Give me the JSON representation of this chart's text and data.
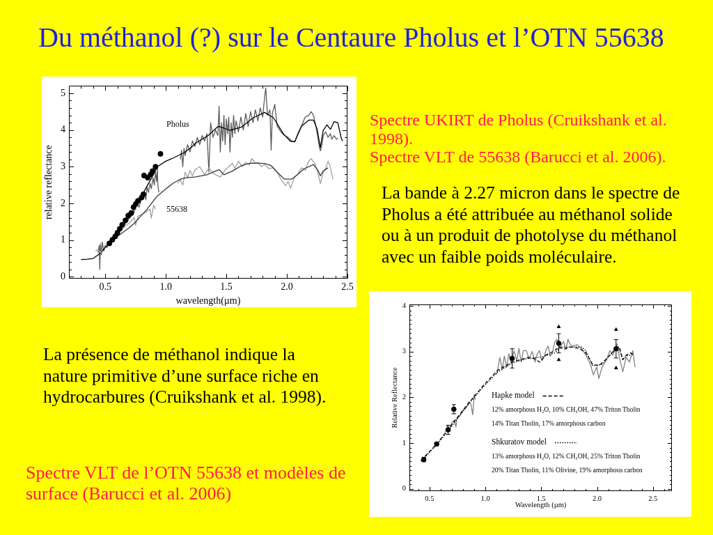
{
  "chart_data": [
    {
      "type": "line",
      "title": "Du méthanol (?) sur le Centaure Pholus et l’OTN 55638",
      "xlabel": "wavelength(µm)",
      "ylabel": "relative reflectance",
      "xlim": [
        0.2,
        2.5
      ],
      "ylim": [
        -0.05,
        5.2
      ],
      "xticks": [
        {
          "value": 0.3,
          "label": null
        },
        {
          "value": 0.4,
          "label": null
        },
        0.5,
        {
          "value": 0.6,
          "label": null
        },
        {
          "value": 0.7,
          "label": null
        },
        {
          "value": 0.8,
          "label": null
        },
        {
          "value": 0.9,
          "label": null
        },
        {
          "value": 1,
          "label": "1.0"
        },
        {
          "value": 1.1,
          "label": null
        },
        {
          "value": 1.2,
          "label": null
        },
        {
          "value": 1.3,
          "label": null
        },
        {
          "value": 1.4,
          "label": null
        },
        1.5,
        {
          "value": 1.6,
          "label": null
        },
        {
          "value": 1.7,
          "label": null
        },
        {
          "value": 1.8,
          "label": null
        },
        {
          "value": 1.9,
          "label": null
        },
        {
          "value": 2,
          "label": "2.0"
        },
        {
          "value": 2.1,
          "label": null
        },
        {
          "value": 2.2,
          "label": null
        },
        {
          "value": 2.3,
          "label": null
        },
        {
          "value": 2.4,
          "label": null
        },
        2.5
      ],
      "yticks": [
        0,
        {
          "value": 0.2,
          "label": null
        },
        {
          "value": 0.4,
          "label": null
        },
        {
          "value": 0.6,
          "label": null
        },
        {
          "value": 0.8,
          "label": null
        },
        1,
        {
          "value": 1.2,
          "label": null
        },
        {
          "value": 1.4,
          "label": null
        },
        {
          "value": 1.6,
          "label": null
        },
        {
          "value": 1.8,
          "label": null
        },
        2,
        {
          "value": 2.2,
          "label": null
        },
        {
          "value": 2.4,
          "label": null
        },
        {
          "value": 2.6,
          "label": null
        },
        {
          "value": 2.8,
          "label": null
        },
        3,
        {
          "value": 3.2,
          "label": null
        },
        {
          "value": 3.4,
          "label": null
        },
        {
          "value": 3.6,
          "label": null
        },
        {
          "value": 3.8,
          "label": null
        },
        4,
        {
          "value": 4.2,
          "label": null
        },
        {
          "value": 4.4,
          "label": null
        },
        {
          "value": 4.6,
          "label": null
        },
        {
          "value": 4.8,
          "label": null
        },
        5
      ],
      "series": [
        {
          "name": "Pholus",
          "color": "#5c5c5c",
          "x": [
            0.44,
            0.45,
            0.455,
            0.46,
            0.468,
            0.475,
            0.487,
            0.5,
            0.515,
            0.53,
            0.56,
            0.6,
            0.63,
            0.66,
            0.7,
            0.73,
            0.76,
            0.78,
            0.8,
            0.82,
            0.835,
            0.845,
            0.857,
            0.87,
            0.88,
            0.895,
            0.905,
            0.915,
            0.924,
            0.93,
            0.934,
            0.943,
            0.95,
            1.12,
            1.13,
            1.14,
            1.15,
            1.16,
            1.18,
            1.2,
            1.22,
            1.24,
            1.26,
            1.28,
            1.3,
            1.32,
            1.34,
            1.356,
            1.37,
            1.39,
            1.41,
            1.43,
            1.44,
            1.45,
            1.46,
            1.47,
            1.48,
            1.49,
            1.5,
            1.51,
            1.52,
            1.53,
            1.54,
            1.55,
            1.56,
            1.57,
            1.58,
            1.6,
            1.62,
            1.64,
            1.66,
            1.68,
            1.7,
            1.72,
            1.74,
            1.76,
            1.78,
            1.8,
            1.81,
            1.825,
            1.84,
            1.86,
            1.87,
            1.88,
            1.9,
            1.92,
            1.95,
            1.98,
            2.01,
            2.04,
            2.065,
            2.09,
            2.12,
            2.15,
            2.18,
            2.2,
            2.22,
            2.24,
            2.25,
            2.265,
            2.276,
            2.29,
            2.3,
            2.32,
            2.34,
            2.36,
            2.37,
            2.39,
            2.41,
            2.42
          ],
          "values": [
            0.65,
            0.85,
            0.2,
            0.9,
            0.6,
            0.95,
            0.7,
            0.85,
            0.8,
            0.95,
            1.0,
            1.15,
            1.3,
            1.42,
            1.6,
            1.7,
            1.95,
            1.9,
            2.15,
            2.3,
            2.1,
            2.45,
            2.3,
            2.55,
            2.4,
            2.7,
            2.5,
            2.85,
            2.6,
            2.95,
            2.5,
            2.3,
            null,
            3.2,
            3.45,
            3.0,
            3.5,
            3.3,
            3.6,
            3.4,
            3.7,
            3.55,
            3.8,
            3.6,
            3.85,
            3.7,
            3.9,
            2.85,
            4.2,
            3.8,
            4.0,
            3.85,
            4.65,
            3.4,
            4.2,
            3.7,
            4.4,
            3.6,
            4.3,
            3.9,
            4.35,
            3.4,
            4.2,
            3.8,
            4.4,
            3.9,
            4.25,
            3.95,
            4.35,
            4.0,
            4.45,
            4.1,
            4.5,
            4.2,
            4.55,
            4.25,
            4.6,
            4.35,
            4.7,
            5.15,
            4.4,
            4.55,
            3.45,
            4.45,
            4.7,
            4.1,
            3.95,
            3.85,
            3.8,
            3.7,
            3.68,
            3.9,
            4.1,
            4.35,
            4.4,
            4.5,
            4.4,
            4.1,
            3.9,
            3.6,
            3.43,
            3.6,
            3.85,
            3.95,
            3.8,
            3.9,
            3.75,
            3.85,
            3.75,
            3.78
          ]
        },
        {
          "color": "#000000",
          "x": [
            0.3,
            0.35,
            0.4,
            0.45,
            0.5,
            0.55,
            0.6,
            0.65,
            0.7,
            0.75,
            0.8,
            0.85,
            0.9,
            0.93,
            1.0,
            1.05,
            1.1,
            1.15,
            1.2,
            1.25,
            1.3,
            1.35,
            1.433,
            1.48,
            1.53,
            1.625,
            1.72,
            1.816,
            1.89,
            1.97,
            2.03,
            2.065,
            2.12,
            2.18,
            2.22,
            2.25,
            2.276,
            2.3,
            2.33,
            2.36,
            2.39,
            2.42,
            2.45,
            2.46
          ],
          "values": [
            0.47,
            0.48,
            0.5,
            0.62,
            0.8,
            0.98,
            1.18,
            1.4,
            1.65,
            1.92,
            2.2,
            2.5,
            2.8,
            3.0,
            3.15,
            3.22,
            3.3,
            3.38,
            3.5,
            3.65,
            3.75,
            3.85,
            4.1,
            4.05,
            3.99,
            4.08,
            4.33,
            4.48,
            4.33,
            3.9,
            3.69,
            3.68,
            4.1,
            4.27,
            4.27,
            4.02,
            3.52,
            3.99,
            4.14,
            4.02,
            4.23,
            4.2,
            3.77,
            3.7
          ]
        },
        {
          "name": "55638",
          "color": "#a0a0a0",
          "x": [
            0.42,
            0.44,
            0.46,
            0.477,
            0.5,
            0.53,
            0.56,
            0.6,
            0.64,
            0.68,
            0.71,
            0.74,
            0.75,
            0.77,
            0.8,
            0.84,
            0.87,
            0.88,
            0.9,
            0.915,
            0.95,
            1.1,
            1.12,
            1.14,
            1.16,
            1.18,
            1.2,
            1.22,
            1.24,
            1.28,
            1.32,
            1.356,
            1.395,
            1.45,
            1.49,
            1.52,
            1.55,
            1.57,
            1.6,
            1.63,
            1.66,
            1.69,
            1.71,
            1.74,
            1.76,
            1.79,
            1.816,
            1.85,
            1.89,
            1.92,
            1.95,
            1.99,
            2.01,
            2.03,
            2.065,
            2.09,
            2.12,
            2.15,
            2.18,
            2.2,
            2.23,
            2.25,
            2.276,
            2.3,
            2.32,
            2.34,
            2.36,
            2.38
          ],
          "values": [
            0.69,
            0.75,
            0.65,
            0.78,
            0.85,
            0.95,
            1.05,
            1.15,
            1.3,
            1.42,
            1.5,
            1.62,
            1.4,
            1.65,
            1.7,
            1.77,
            1.85,
            1.6,
            1.95,
            1.85,
            null,
            2.55,
            2.65,
            2.5,
            2.85,
            2.7,
            2.9,
            2.75,
            2.91,
            3.0,
            2.78,
            2.97,
            2.81,
            2.72,
            2.91,
            3.0,
            3.09,
            2.95,
            3.15,
            3.0,
            3.12,
            3.05,
            3.22,
            3.1,
            3.12,
            3.0,
            3.06,
            2.95,
            2.97,
            2.85,
            2.66,
            2.48,
            2.6,
            2.41,
            2.72,
            2.8,
            2.97,
            2.9,
            3.15,
            3.22,
            3.09,
            2.9,
            2.54,
            2.85,
            2.95,
            3.15,
            2.97,
            2.66
          ]
        },
        {
          "color": "#383838",
          "x": [
            0.55,
            0.6,
            0.65,
            0.7,
            0.74,
            0.8,
            0.84,
            0.9,
            0.93,
            1.01,
            1.06,
            1.12,
            1.17,
            1.24,
            1.34,
            1.41,
            1.44,
            1.48,
            1.55,
            1.625,
            1.7,
            1.816,
            1.87,
            1.92,
            1.98,
            2.04,
            2.085,
            2.14,
            2.22,
            2.26,
            2.276,
            2.3,
            2.34
          ],
          "values": [
            0.97,
            1.1,
            1.22,
            1.34,
            1.46,
            1.68,
            1.82,
            2.08,
            2.2,
            2.42,
            2.55,
            2.66,
            2.7,
            2.72,
            2.78,
            2.88,
            2.92,
            2.78,
            2.88,
            3.03,
            3.1,
            3.09,
            3.03,
            2.85,
            2.66,
            2.66,
            2.78,
            2.94,
            3.06,
            2.88,
            2.75,
            2.88,
            2.97
          ]
        },
        {
          "type": "scatter",
          "marker": "circle",
          "color": "#000000",
          "x": [
            0.534,
            0.559,
            0.582,
            0.6,
            0.62,
            0.64,
            0.667,
            0.69,
            0.715,
            0.734,
            0.753,
            0.77,
            0.8,
            0.815,
            0.82,
            0.85,
            0.875,
            0.89,
            0.915,
            0.956
          ],
          "values": [
            0.91,
            1.01,
            1.1,
            1.2,
            1.31,
            1.42,
            1.54,
            1.67,
            1.74,
            1.9,
            1.99,
            2.07,
            2.16,
            2.25,
            2.76,
            2.7,
            2.79,
            2.88,
            3.0,
            3.35
          ]
        }
      ],
      "annotations": [
        "Spectre UKIRT de Pholus (Cruikshank et al. 1998).",
        "Spectre VLT de 55638 (Barucci et al. 2006).",
        "La bande à 2.27 micron dans le spectre de Pholus a été attribuée au méthanol solide ou à un produit de photolyse du méthanol avec un faible poids moléculaire.",
        "La présence de méthanol indique la nature primitive d’une surface riche en hydrocarbures (Cruikshank et al. 1998)."
      ]
    },
    {
      "type": "line",
      "xlabel": "Wavelength (µm)",
      "ylabel": "Relative Reflectance",
      "xlim": [
        0.32,
        2.67
      ],
      "ylim": [
        -0.05,
        4.03
      ],
      "legend": "bottom right",
      "xticks": [
        {
          "value": 0.4,
          "label": null
        },
        0.5,
        {
          "value": 0.6,
          "label": null
        },
        {
          "value": 0.7,
          "label": null
        },
        {
          "value": 0.8,
          "label": null
        },
        {
          "value": 0.9,
          "label": null
        },
        {
          "value": 1,
          "label": "1.0"
        },
        {
          "value": 1.1,
          "label": null
        },
        {
          "value": 1.2,
          "label": null
        },
        {
          "value": 1.3,
          "label": null
        },
        {
          "value": 1.4,
          "label": null
        },
        1.5,
        {
          "value": 1.6,
          "label": null
        },
        {
          "value": 1.7,
          "label": null
        },
        {
          "value": 1.8,
          "label": null
        },
        {
          "value": 1.9,
          "label": null
        },
        {
          "value": 2,
          "label": "2.0"
        },
        {
          "value": 2.1,
          "label": null
        },
        {
          "value": 2.2,
          "label": null
        },
        {
          "value": 2.3,
          "label": null
        },
        {
          "value": 2.4,
          "label": null
        },
        2.5,
        {
          "value": 2.6,
          "label": null
        }
      ],
      "yticks": [
        0,
        {
          "value": 0.1,
          "label": null
        },
        {
          "value": 0.2,
          "label": null
        },
        {
          "value": 0.3,
          "label": null
        },
        {
          "value": 0.4,
          "label": null
        },
        {
          "value": 0.5,
          "label": null
        },
        {
          "value": 0.6,
          "label": null
        },
        {
          "value": 0.7,
          "label": null
        },
        {
          "value": 0.8,
          "label": null
        },
        {
          "value": 0.9,
          "label": null
        },
        1,
        {
          "value": 1.1,
          "label": null
        },
        {
          "value": 1.2,
          "label": null
        },
        {
          "value": 1.3,
          "label": null
        },
        {
          "value": 1.4,
          "label": null
        },
        {
          "value": 1.5,
          "label": null
        },
        {
          "value": 1.6,
          "label": null
        },
        {
          "value": 1.7,
          "label": null
        },
        {
          "value": 1.8,
          "label": null
        },
        {
          "value": 1.9,
          "label": null
        },
        2,
        {
          "value": 2.1,
          "label": null
        },
        {
          "value": 2.2,
          "label": null
        },
        {
          "value": 2.3,
          "label": null
        },
        {
          "value": 2.4,
          "label": null
        },
        {
          "value": 2.5,
          "label": null
        },
        {
          "value": 2.6,
          "label": null
        },
        {
          "value": 2.7,
          "label": null
        },
        {
          "value": 2.8,
          "label": null
        },
        {
          "value": 2.9,
          "label": null
        },
        3,
        {
          "value": 3.1,
          "label": null
        },
        {
          "value": 3.2,
          "label": null
        },
        {
          "value": 3.3,
          "label": null
        },
        {
          "value": 3.4,
          "label": null
        },
        {
          "value": 3.5,
          "label": null
        },
        {
          "value": 3.6,
          "label": null
        },
        {
          "value": 3.7,
          "label": null
        },
        {
          "value": 3.8,
          "label": null
        },
        {
          "value": 3.9,
          "label": null
        },
        4
      ],
      "series": [
        {
          "color": "#808080",
          "x": [
            0.64,
            0.66,
            0.68,
            0.7,
            0.72,
            0.737,
            0.745,
            0.77,
            0.8,
            0.83,
            0.85,
            0.87,
            0.887,
            0.9,
            0.91,
            0.92,
            1.1,
            1.11,
            1.13,
            1.15,
            1.17,
            1.19,
            1.21,
            1.23,
            1.257,
            1.28,
            1.3,
            1.32,
            1.34,
            1.366,
            1.39,
            1.42,
            1.445,
            1.465,
            1.484,
            1.505,
            1.524,
            1.545,
            1.563,
            1.58,
            1.6,
            1.62,
            1.64,
            1.67,
            1.7,
            1.72,
            1.74,
            1.76,
            1.78,
            1.82,
            1.86,
            1.9,
            1.94,
            1.967,
            1.996,
            2.016,
            2.045,
            2.085,
            2.114,
            2.14,
            2.18,
            2.2,
            2.23,
            2.26,
            2.29,
            2.32,
            2.34
          ],
          "values": [
            1.24,
            1.38,
            1.3,
            1.45,
            1.5,
            1.35,
            1.55,
            1.6,
            1.72,
            1.78,
            1.9,
            1.85,
            1.62,
            2.06,
            1.95,
            null,
            2.5,
            2.61,
            2.87,
            2.6,
            2.9,
            2.65,
            2.95,
            2.75,
            3.02,
            2.8,
            3.07,
            2.77,
            3.02,
            3.02,
            2.85,
            3.0,
            2.77,
            2.95,
            3.02,
            2.8,
            2.87,
            3.05,
            3.12,
            2.9,
            2.97,
            3.2,
            3.27,
            3.1,
            3.22,
            3.05,
            3.27,
            3.15,
            3.12,
            3.15,
            3.07,
            2.92,
            2.72,
            2.49,
            2.66,
            2.41,
            2.66,
            2.82,
            3.02,
            2.92,
            3.17,
            2.87,
            2.56,
            2.87,
            2.77,
            3.02,
            2.66
          ]
        },
        {
          "name": "Hapke model",
          "color": "#000000",
          "line_style": "dashed",
          "x": [
            0.424,
            0.564,
            0.667,
            0.75,
            0.825,
            0.9,
            0.99,
            1.11,
            1.24,
            1.38,
            1.445,
            1.484,
            1.54,
            1.62,
            1.66,
            1.7,
            1.76,
            1.84,
            1.9,
            1.96,
            2.016,
            2.055,
            2.114,
            2.17,
            2.2,
            2.23,
            2.26,
            2.3,
            2.33
          ],
          "values": [
            0.62,
            0.98,
            1.3,
            1.56,
            1.8,
            2.02,
            2.28,
            2.59,
            2.77,
            2.87,
            2.84,
            2.77,
            2.92,
            3.02,
            3.1,
            3.05,
            3.1,
            3.07,
            2.97,
            2.72,
            2.69,
            2.77,
            2.92,
            3.07,
            3.1,
            2.82,
            2.92,
            2.97,
            2.92
          ]
        },
        {
          "name": "Shkuratov model",
          "color": "#000000",
          "line_style": "dotted",
          "x": [
            0.424,
            0.564,
            0.667,
            0.75,
            0.825,
            0.9,
            0.99,
            1.11,
            1.24,
            1.38,
            1.5,
            1.62,
            1.68,
            1.86,
            1.9,
            1.96,
            2.045,
            2.114,
            2.19,
            2.23,
            2.26,
            2.33
          ],
          "values": [
            0.6,
            0.96,
            1.27,
            1.53,
            1.77,
            2.0,
            2.25,
            2.55,
            2.75,
            2.85,
            2.88,
            2.97,
            3.1,
            3.1,
            3.02,
            2.69,
            2.72,
            2.92,
            3.1,
            2.82,
            2.9,
            2.95
          ]
        },
        {
          "type": "scatter",
          "marker": "circle",
          "color": "#000000",
          "x": [
            0.449,
            0.564,
            0.667,
            0.718,
            1.24,
            1.657,
            2.17
          ],
          "values": [
            0.64,
            0.98,
            1.29,
            1.74,
            2.85,
            3.18,
            3.06
          ],
          "errors": [
            0.05,
            0.04,
            0.1,
            0.1,
            0.21,
            0.21,
            0.2
          ]
        },
        {
          "type": "scatter",
          "marker": "triangle",
          "color": "#000000",
          "x": [
            1.657,
            1.657,
            2.17,
            2.17
          ],
          "values": [
            3.54,
            2.82,
            3.48,
            2.64
          ]
        }
      ],
      "annotations": [
        "12% amorphous H₂O, 10% CH₃OH, 47% Triton Tholin",
        "14% Titan Tholin, 17% amorphous carbon",
        "13% amorphous H₂O, 12% CH₃OH, 25% Triton Tholin",
        "20% Titan Tholin, 11% Olivine, 19% amorphous carbon",
        "Spectre VLT de l’OTN 55638 et modèles de surface (Barucci et al. 2006)"
      ]
    }
  ]
}
